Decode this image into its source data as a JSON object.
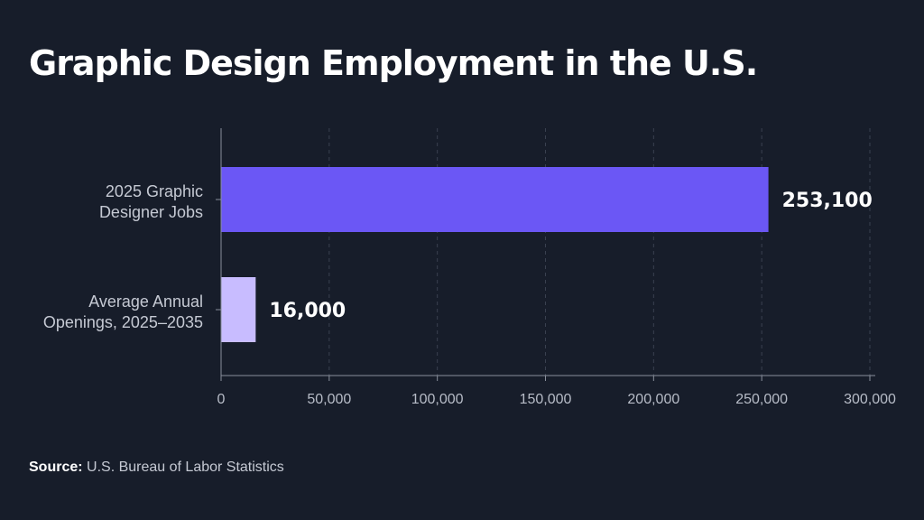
{
  "chart_data": {
    "type": "bar",
    "orientation": "horizontal",
    "title": "Graphic Design Employment in the U.S.",
    "categories": [
      [
        "2025 Graphic",
        "Designer Jobs"
      ],
      [
        "Average Annual",
        "Openings, 2025–2035"
      ]
    ],
    "values": [
      253100,
      16000
    ],
    "value_labels": [
      "253,100",
      "16,000"
    ],
    "bar_colors": [
      "#6b57f5",
      "#c8bcff"
    ],
    "xlim": [
      0,
      300000
    ],
    "xticks": [
      0,
      50000,
      100000,
      150000,
      200000,
      250000,
      300000
    ],
    "xtick_labels": [
      "0",
      "50,000",
      "100,000",
      "150,000",
      "200,000",
      "250,000",
      "300,000"
    ],
    "grid": "vertical dashed",
    "xlabel": "",
    "ylabel": ""
  },
  "source": {
    "key": "Source:",
    "text": "U.S. Bureau of Labor Statistics"
  }
}
